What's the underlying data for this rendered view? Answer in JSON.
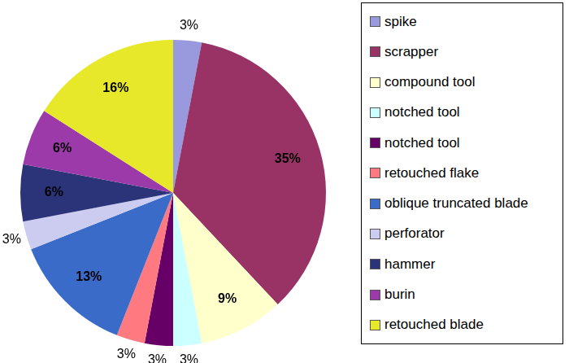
{
  "chart_data": {
    "type": "pie",
    "categories": [
      "spike",
      "scrapper",
      "compound tool",
      "notched tool",
      "notched tool",
      "retouched flake",
      "oblique truncated blade",
      "perforator",
      "hammer",
      "burin",
      "retouched blade"
    ],
    "values": [
      3,
      35,
      9,
      3,
      3,
      3,
      13,
      3,
      6,
      6,
      16
    ],
    "value_labels": [
      "3%",
      "35%",
      "9%",
      "3%",
      "3%",
      "3%",
      "13%",
      "3%",
      "6%",
      "6%",
      "16%"
    ],
    "colors": [
      "#9999dd",
      "#993366",
      "#ffffcc",
      "#ccffff",
      "#660066",
      "#ff7a80",
      "#3a6bc8",
      "#ccccf0",
      "#2b3479",
      "#9b3aa8",
      "#e8e82a"
    ],
    "data_labels": true,
    "legend": "right"
  }
}
